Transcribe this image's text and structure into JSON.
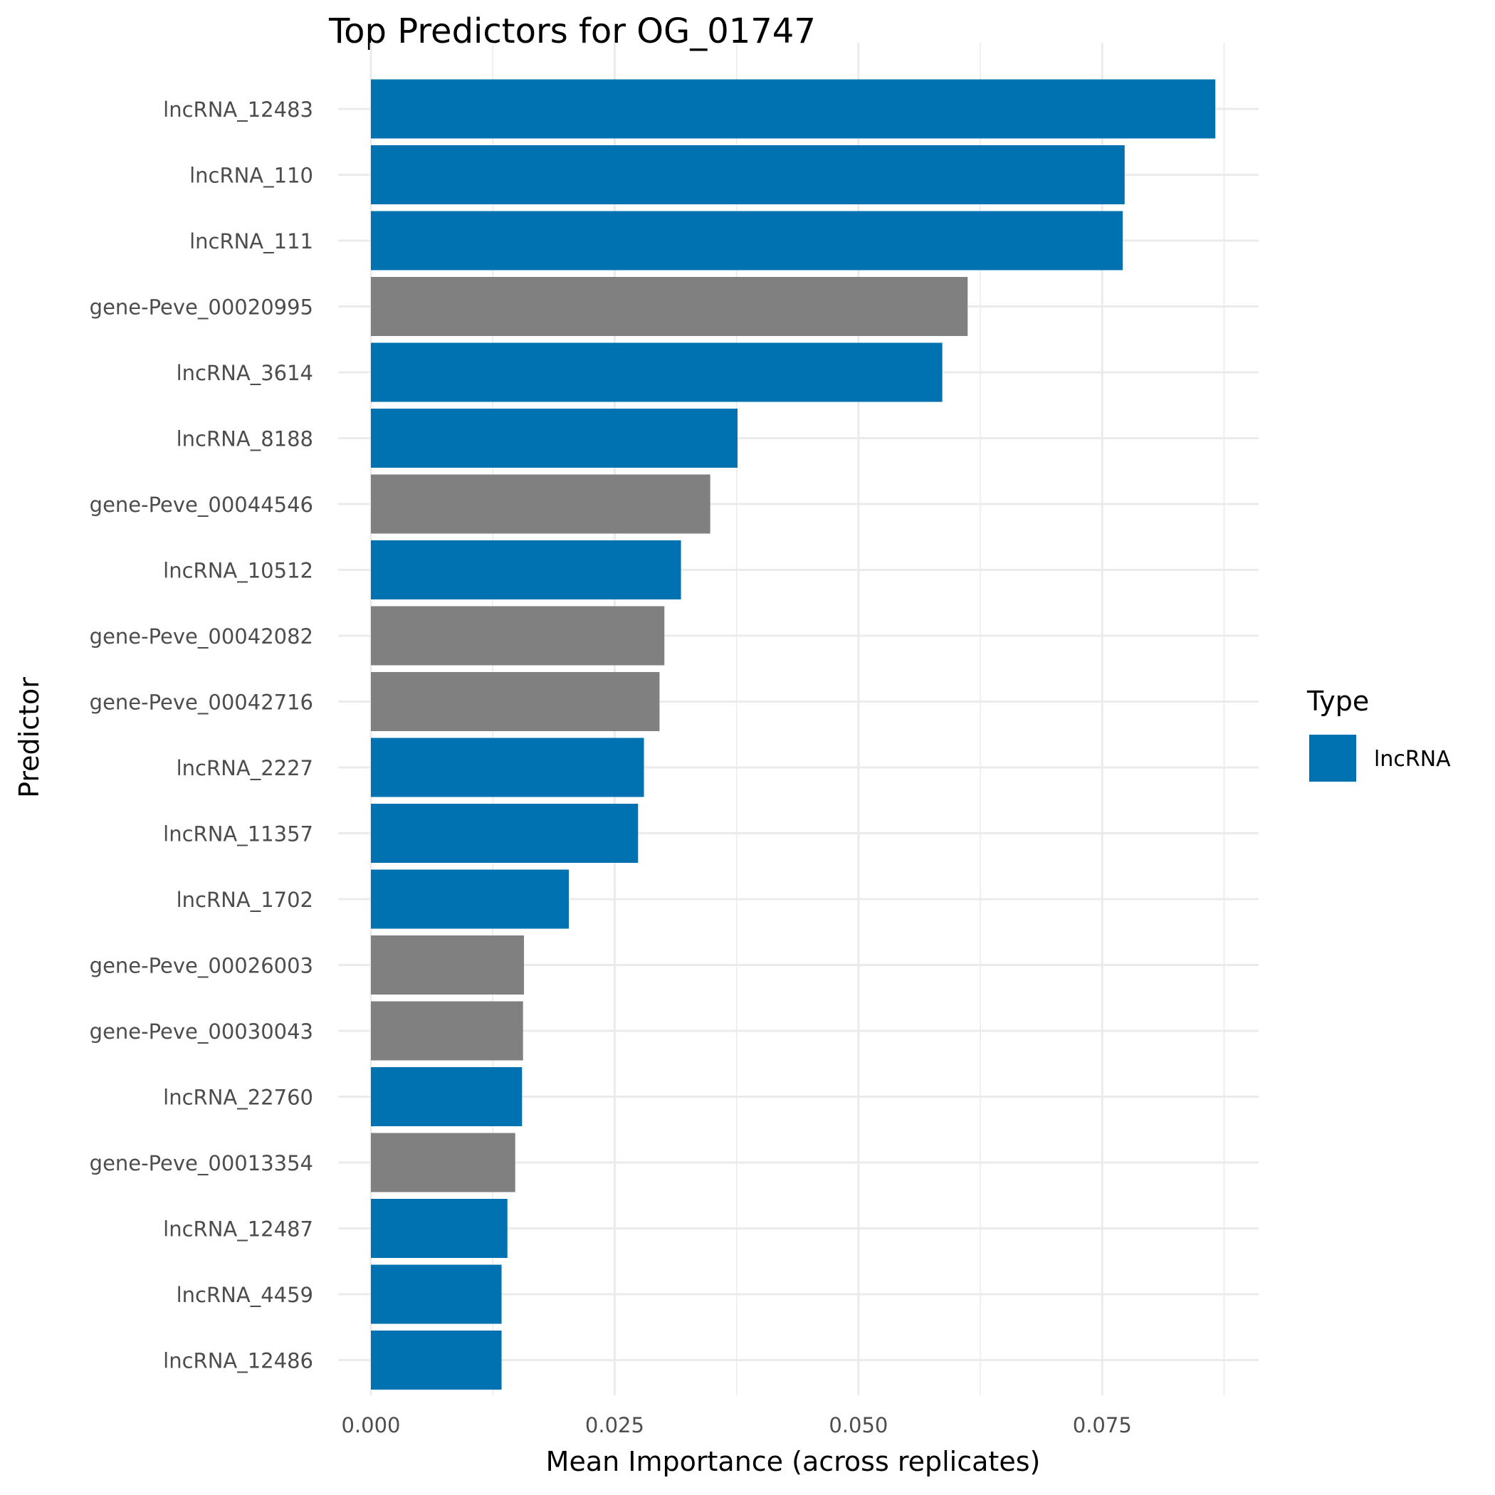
{
  "chart_data": {
    "type": "bar",
    "orientation": "horizontal",
    "title": "Top Predictors for OG_01747",
    "xlabel": "Mean Importance (across replicates)",
    "ylabel": "Predictor",
    "xlim": [
      0,
      0.091
    ],
    "xticks": [
      "0.000",
      "0.025",
      "0.050",
      "0.075"
    ],
    "xtick_values": [
      0,
      0.025,
      0.05,
      0.075
    ],
    "grid": true,
    "legend": {
      "title": "Type",
      "position": "right",
      "entries": [
        {
          "label": "lncRNA",
          "color": "#0072B2"
        }
      ]
    },
    "colors": {
      "lncRNA": "#0072B2",
      "gene": "#808080"
    },
    "categories": [
      "lncRNA_12483",
      "lncRNA_110",
      "lncRNA_111",
      "gene-Peve_00020995",
      "lncRNA_3614",
      "lncRNA_8188",
      "gene-Peve_00044546",
      "lncRNA_10512",
      "gene-Peve_00042082",
      "gene-Peve_00042716",
      "lncRNA_2227",
      "lncRNA_11357",
      "lncRNA_1702",
      "gene-Peve_00026003",
      "gene-Peve_00030043",
      "lncRNA_22760",
      "gene-Peve_00013354",
      "lncRNA_12487",
      "lncRNA_4459",
      "lncRNA_12486"
    ],
    "types": [
      "lncRNA",
      "lncRNA",
      "lncRNA",
      "gene",
      "lncRNA",
      "lncRNA",
      "gene",
      "lncRNA",
      "gene",
      "gene",
      "lncRNA",
      "lncRNA",
      "lncRNA",
      "gene",
      "gene",
      "lncRNA",
      "gene",
      "lncRNA",
      "lncRNA",
      "lncRNA"
    ],
    "values": [
      0.0866,
      0.0773,
      0.0771,
      0.0612,
      0.0586,
      0.0376,
      0.0348,
      0.0318,
      0.0301,
      0.0296,
      0.028,
      0.0274,
      0.0203,
      0.0157,
      0.0156,
      0.0155,
      0.0148,
      0.014,
      0.0134,
      0.0134
    ]
  }
}
